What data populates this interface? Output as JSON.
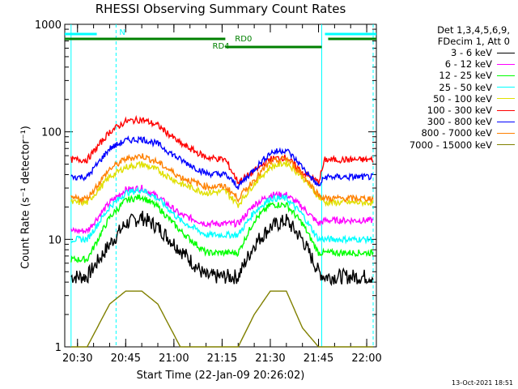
{
  "chart_data": {
    "type": "line",
    "title": "RHESSI Observing Summary Count Rates",
    "xlabel": "Start Time (22-Jan-09 20:26:02)",
    "ylabel": "Count Rate (s⁻¹ detector⁻¹)",
    "y_scale": "log",
    "ylim": [
      1,
      1000
    ],
    "xlim": [
      "20:26:02",
      "22:03:00"
    ],
    "x_ticks": [
      "20:30",
      "20:45",
      "21:00",
      "21:15",
      "21:30",
      "21:45",
      "22:00"
    ],
    "y_ticks": [
      "1",
      "10",
      "100",
      "1000"
    ],
    "legend_header": [
      "Det 1,3,4,5,6,9,",
      "FDecim 1, Att 0"
    ],
    "series": [
      {
        "name": "3 - 6 keV",
        "color": "#000000",
        "x": [
          "20:28",
          "20:33",
          "20:40",
          "20:45",
          "20:50",
          "20:55",
          "21:02",
          "21:10",
          "21:16",
          "21:20",
          "21:25",
          "21:30",
          "21:35",
          "21:40",
          "21:45",
          "21:47",
          "21:55",
          "22:02"
        ],
        "values": [
          4.5,
          4.5,
          9,
          14,
          16,
          13,
          8,
          4.5,
          4.5,
          4.5,
          9,
          13,
          15,
          10,
          5,
          4.5,
          4.5,
          4.5
        ]
      },
      {
        "name": "6 - 12 keV",
        "color": "#ff00ff",
        "x": [
          "20:28",
          "20:33",
          "20:40",
          "20:45",
          "20:50",
          "20:55",
          "21:02",
          "21:10",
          "21:16",
          "21:20",
          "21:25",
          "21:30",
          "21:35",
          "21:40",
          "21:45",
          "21:47",
          "21:55",
          "22:02"
        ],
        "values": [
          12,
          12,
          22,
          29,
          30,
          25,
          17,
          14,
          14,
          14,
          21,
          26,
          26,
          20,
          14,
          15,
          15,
          15
        ]
      },
      {
        "name": "12 - 25 keV",
        "color": "#00ff00",
        "x": [
          "20:28",
          "20:33",
          "20:40",
          "20:45",
          "20:50",
          "20:55",
          "21:02",
          "21:10",
          "21:16",
          "21:20",
          "21:25",
          "21:30",
          "21:35",
          "21:40",
          "21:45",
          "21:47",
          "21:55",
          "22:02"
        ],
        "values": [
          6.5,
          6.5,
          16,
          23,
          25,
          20,
          12,
          7.5,
          7.5,
          7.5,
          15,
          21,
          21,
          14,
          7.5,
          7.5,
          7.5,
          7.5
        ]
      },
      {
        "name": "25 - 50 keV",
        "color": "#00ffff",
        "x": [
          "20:28",
          "20:33",
          "20:40",
          "20:45",
          "20:50",
          "20:55",
          "21:02",
          "21:10",
          "21:16",
          "21:20",
          "21:25",
          "21:30",
          "21:35",
          "21:40",
          "21:45",
          "21:47",
          "21:55",
          "22:02"
        ],
        "values": [
          10,
          10,
          20,
          27,
          29,
          24,
          15,
          11,
          11,
          11,
          18,
          24,
          24,
          17,
          10,
          10,
          10,
          10
        ]
      },
      {
        "name": "50 - 100 keV",
        "color": "#e0e000",
        "x": [
          "20:28",
          "20:33",
          "20:40",
          "20:45",
          "20:50",
          "20:55",
          "21:02",
          "21:10",
          "21:16",
          "21:20",
          "21:25",
          "21:30",
          "21:35",
          "21:40",
          "21:45",
          "21:47",
          "21:55",
          "22:02"
        ],
        "values": [
          22,
          22,
          38,
          47,
          50,
          44,
          33,
          27,
          28,
          21,
          33,
          47,
          52,
          38,
          25,
          22,
          22,
          22
        ]
      },
      {
        "name": "100 - 300 keV",
        "color": "#ff0000",
        "x": [
          "20:28",
          "20:33",
          "20:40",
          "20:45",
          "20:50",
          "20:55",
          "21:02",
          "21:10",
          "21:16",
          "21:20",
          "21:25",
          "21:30",
          "21:35",
          "21:40",
          "21:45",
          "21:47",
          "21:55",
          "22:02"
        ],
        "values": [
          55,
          55,
          100,
          125,
          130,
          115,
          78,
          58,
          55,
          34,
          43,
          56,
          58,
          42,
          34,
          55,
          55,
          55
        ]
      },
      {
        "name": "300 - 800 keV",
        "color": "#0000ff",
        "x": [
          "20:28",
          "20:33",
          "20:40",
          "20:45",
          "20:50",
          "20:55",
          "21:02",
          "21:10",
          "21:16",
          "21:20",
          "21:25",
          "21:30",
          "21:35",
          "21:40",
          "21:45",
          "21:47",
          "21:55",
          "22:02"
        ],
        "values": [
          38,
          38,
          70,
          83,
          86,
          77,
          55,
          41,
          40,
          31,
          45,
          64,
          68,
          47,
          31,
          38,
          38,
          38
        ]
      },
      {
        "name": "800 - 7000 keV",
        "color": "#ff8000",
        "x": [
          "20:28",
          "20:33",
          "20:40",
          "20:45",
          "20:50",
          "20:55",
          "21:02",
          "21:10",
          "21:16",
          "21:20",
          "21:25",
          "21:30",
          "21:35",
          "21:40",
          "21:45",
          "21:47",
          "21:55",
          "22:02"
        ],
        "values": [
          24,
          24,
          45,
          56,
          60,
          52,
          38,
          31,
          31,
          24,
          36,
          52,
          57,
          40,
          26,
          24,
          24,
          24
        ]
      },
      {
        "name": "7000 - 15000 keV",
        "color": "#808000",
        "x": [
          "20:28",
          "20:33",
          "20:40",
          "20:45",
          "20:50",
          "20:55",
          "21:02",
          "21:10",
          "21:16",
          "21:20",
          "21:25",
          "21:30",
          "21:35",
          "21:40",
          "21:45",
          "21:47",
          "21:55",
          "22:02"
        ],
        "values": [
          1,
          1,
          2.5,
          3.3,
          3.3,
          2.5,
          1,
          1,
          1,
          1,
          2,
          3.3,
          3.3,
          1.5,
          1,
          1,
          1,
          1
        ]
      }
    ],
    "flags": [
      {
        "label": "N",
        "color": "#00ffff",
        "segments": [
          [
            "20:26:02",
            "20:36"
          ],
          [
            "21:47",
            "22:03"
          ]
        ]
      },
      {
        "label": "RD0",
        "color": "#008000",
        "segments": [
          [
            "20:26:02",
            "21:16"
          ],
          [
            "21:48",
            "22:03"
          ]
        ]
      },
      {
        "label": "RD4",
        "color": "#008000",
        "segments": [
          [
            "21:16",
            "21:46"
          ]
        ]
      }
    ],
    "vertical_lines": [
      {
        "x": "20:28",
        "color": "#00ffff",
        "style": "solid"
      },
      {
        "x": "20:42",
        "color": "#00ffff",
        "style": "dashed"
      },
      {
        "x": "21:46",
        "color": "#00ffff",
        "style": "solid"
      },
      {
        "x": "22:02",
        "color": "#00ffff",
        "style": "dashed"
      }
    ],
    "footer": "13-Oct-2021 18:51"
  }
}
